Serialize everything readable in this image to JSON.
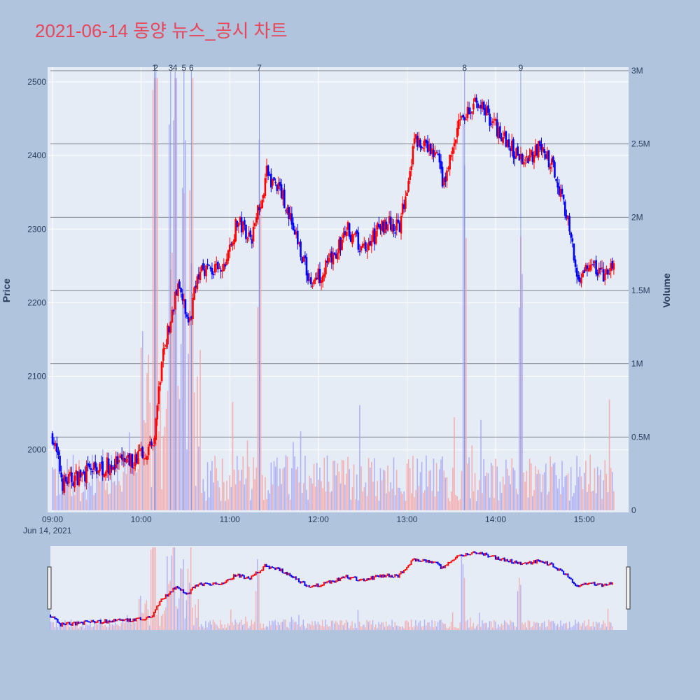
{
  "title": "2021-06-14 동양 뉴스_공시 차트",
  "chart_data": {
    "type": "candlestick",
    "title": "2021-06-14 동양 뉴스_공시 차트",
    "ylabel": "Price",
    "y2label": "Volume",
    "ylim": [
      1915,
      2520
    ],
    "y2lim": [
      0,
      3000000
    ],
    "x_range": [
      "09:00",
      "15:30"
    ],
    "x_tick_labels": [
      "09:00",
      "10:00",
      "11:00",
      "12:00",
      "13:00",
      "14:00",
      "15:00"
    ],
    "x_date_label": "Jun 14, 2021",
    "y_tick_labels": [
      "2000",
      "2100",
      "2200",
      "2300",
      "2400",
      "2500"
    ],
    "y2_tick_labels": [
      "0",
      "0.5M",
      "1M",
      "1.5M",
      "2M",
      "2.5M",
      "3M"
    ],
    "y2_ticks": [
      0,
      500000,
      1000000,
      1500000,
      2000000,
      2500000,
      3000000
    ],
    "up_color": "#ff0000",
    "down_color": "#0000ff",
    "grid": true,
    "markers": [
      {
        "label": "1",
        "time": "10:09"
      },
      {
        "label": "2",
        "time": "10:10"
      },
      {
        "label": "3",
        "time": "10:20"
      },
      {
        "label": "4",
        "time": "10:23"
      },
      {
        "label": "5",
        "time": "10:29"
      },
      {
        "label": "6",
        "time": "10:34"
      },
      {
        "label": "7",
        "time": "11:20"
      },
      {
        "label": "8",
        "time": "13:39"
      },
      {
        "label": "9",
        "time": "14:17"
      }
    ],
    "key_points": [
      {
        "time": "09:00",
        "price": 2020
      },
      {
        "time": "09:07",
        "price": 1955
      },
      {
        "time": "09:30",
        "price": 1975
      },
      {
        "time": "09:55",
        "price": 1985
      },
      {
        "time": "10:08",
        "price": 2010
      },
      {
        "time": "10:15",
        "price": 2130
      },
      {
        "time": "10:25",
        "price": 2225
      },
      {
        "time": "10:32",
        "price": 2170
      },
      {
        "time": "10:40",
        "price": 2250
      },
      {
        "time": "10:55",
        "price": 2240
      },
      {
        "time": "11:05",
        "price": 2310
      },
      {
        "time": "11:15",
        "price": 2290
      },
      {
        "time": "11:25",
        "price": 2375
      },
      {
        "time": "11:35",
        "price": 2350
      },
      {
        "time": "11:45",
        "price": 2290
      },
      {
        "time": "11:55",
        "price": 2225
      },
      {
        "time": "12:10",
        "price": 2260
      },
      {
        "time": "12:20",
        "price": 2300
      },
      {
        "time": "12:30",
        "price": 2270
      },
      {
        "time": "12:45",
        "price": 2310
      },
      {
        "time": "12:55",
        "price": 2300
      },
      {
        "time": "13:05",
        "price": 2420
      },
      {
        "time": "13:20",
        "price": 2400
      },
      {
        "time": "13:25",
        "price": 2360
      },
      {
        "time": "13:35",
        "price": 2440
      },
      {
        "time": "13:48",
        "price": 2475
      },
      {
        "time": "14:00",
        "price": 2440
      },
      {
        "time": "14:10",
        "price": 2410
      },
      {
        "time": "14:20",
        "price": 2395
      },
      {
        "time": "14:30",
        "price": 2410
      },
      {
        "time": "14:40",
        "price": 2380
      },
      {
        "time": "14:48",
        "price": 2320
      },
      {
        "time": "14:55",
        "price": 2235
      },
      {
        "time": "15:05",
        "price": 2250
      },
      {
        "time": "15:15",
        "price": 2235
      },
      {
        "time": "15:20",
        "price": 2255
      }
    ]
  }
}
